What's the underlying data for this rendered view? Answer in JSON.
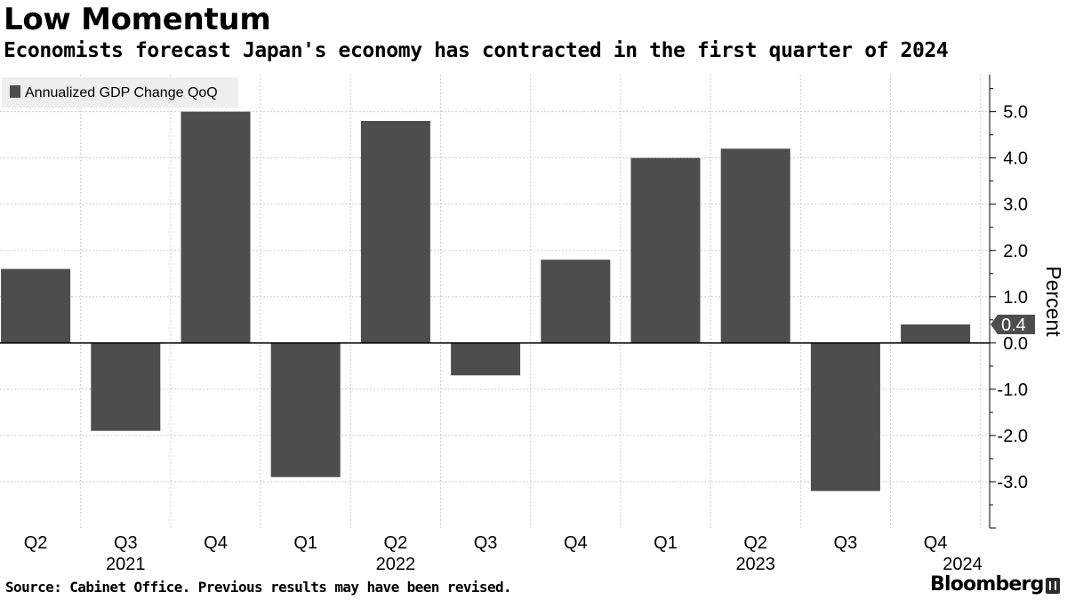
{
  "header": {
    "title": "Low Momentum",
    "subtitle": "Economists forecast Japan's economy has contracted in the first quarter of 2024"
  },
  "footer": {
    "source": "Source: Cabinet Office. Previous results may have been revised.",
    "brand": "Bloomberg"
  },
  "colors": {
    "bar": "#4d4d4d",
    "grid": "#cccccc",
    "legend_bg": "#eeeeee",
    "axis": "#000000"
  },
  "chart_data": {
    "type": "bar",
    "title": "Low Momentum",
    "subtitle": "Economists forecast Japan's economy has contracted in the first quarter of 2024",
    "categories": [
      "Q2 2021",
      "Q3 2021",
      "Q4 2021",
      "Q1 2022",
      "Q2 2022",
      "Q3 2022",
      "Q4 2022",
      "Q1 2023",
      "Q2 2023",
      "Q3 2023",
      "Q4 2023"
    ],
    "quarter_labels": [
      "Q2",
      "Q3",
      "Q4",
      "Q1",
      "Q2",
      "Q3",
      "Q4",
      "Q1",
      "Q2",
      "Q3",
      "Q4"
    ],
    "year_labels": [
      {
        "text": "2021",
        "under_index": 1
      },
      {
        "text": "2022",
        "under_index": 4
      },
      {
        "text": "2023",
        "under_index": 8
      },
      {
        "text": "2024",
        "under_index": 10.3
      }
    ],
    "series": [
      {
        "name": "Annualized GDP Change QoQ",
        "values": [
          1.6,
          -1.9,
          5.0,
          -2.9,
          4.8,
          -0.7,
          1.8,
          4.0,
          4.2,
          -3.2,
          0.4
        ]
      }
    ],
    "ylabel": "Percent",
    "y_ticks": [
      "5.0",
      "4.0",
      "3.0",
      "2.0",
      "1.0",
      "0.0",
      "-1.0",
      "-2.0",
      "-3.0"
    ],
    "y_tick_values": [
      5,
      4,
      3,
      2,
      1,
      0,
      -1,
      -2,
      -3
    ],
    "ylim": [
      -4.0,
      5.8
    ],
    "last_value_label": "0.4",
    "axis_side": "right",
    "grid": true,
    "legend_position": "top-left",
    "source": "Source: Cabinet Office. Previous results may have been revised."
  }
}
